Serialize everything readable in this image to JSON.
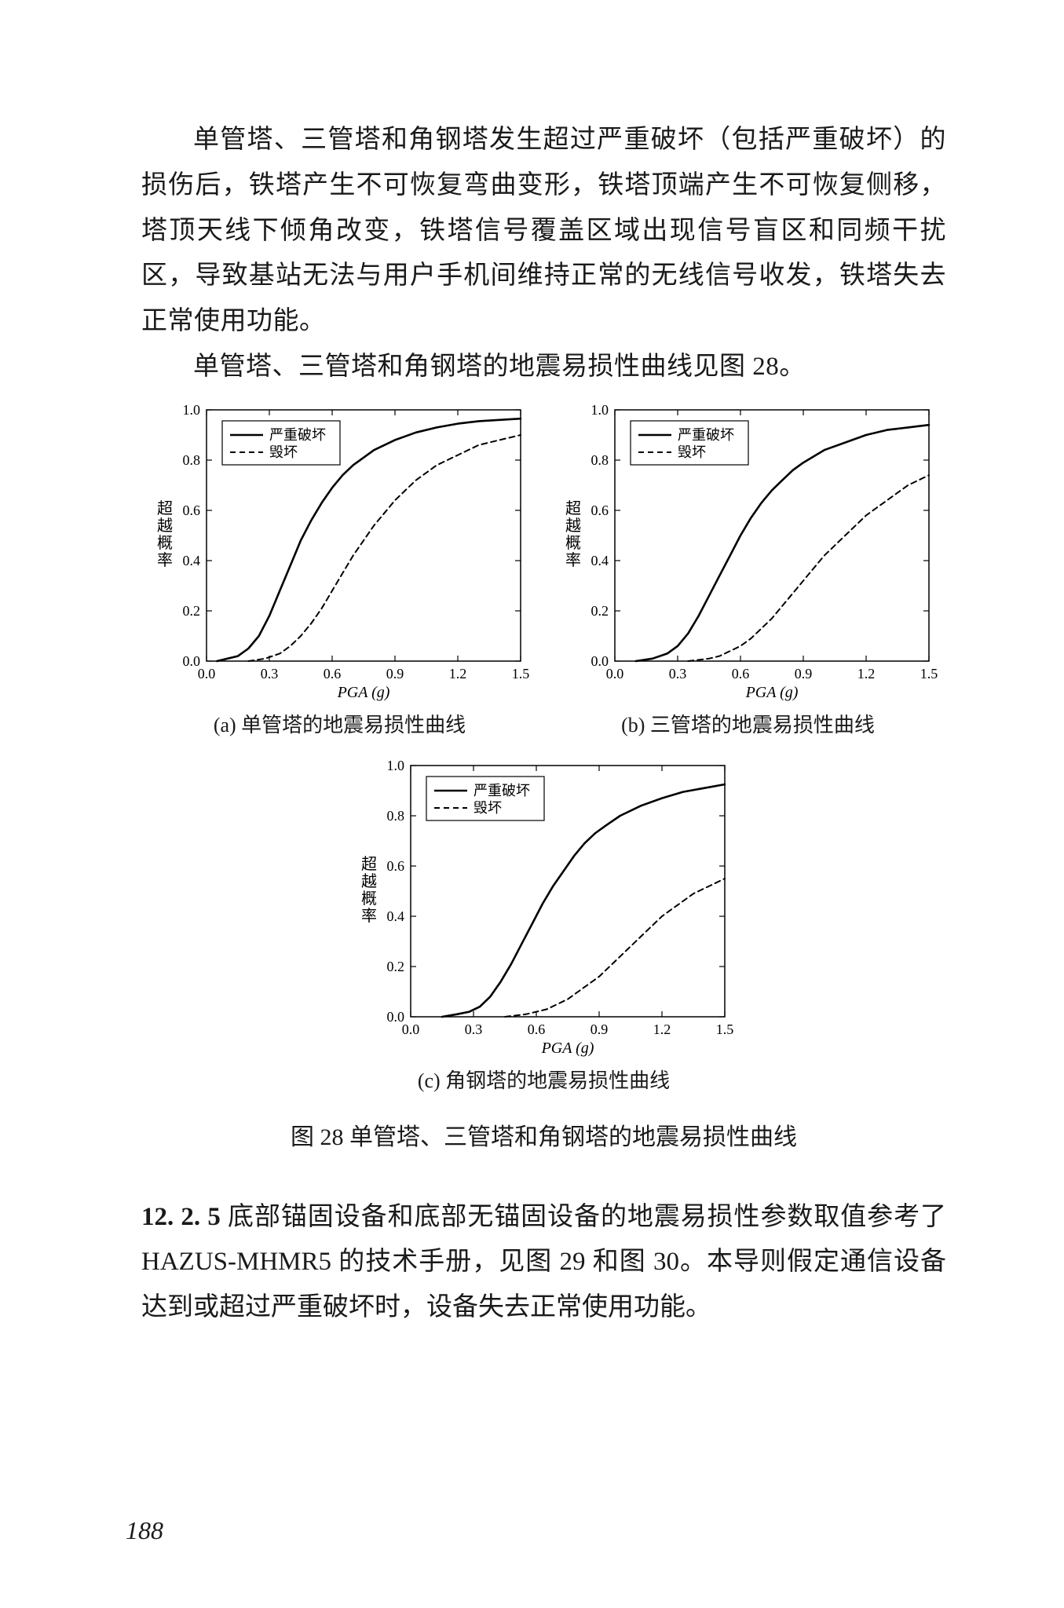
{
  "paragraph1": {
    "line1": "单管塔、三管塔和角钢塔发生超过严重破坏（包括严重破",
    "line2_5": "坏）的损伤后，铁塔产生不可恢复弯曲变形，铁塔顶端产生不可恢复侧移，塔顶天线下倾角改变，铁塔信号覆盖区域出现信号盲区和同频干扰区，导致基站无法与用户手机间维持正常的无线信号收发，铁塔失去正常使用功能。"
  },
  "paragraph2": "单管塔、三管塔和角钢塔的地震易损性曲线见图 28。",
  "figure": {
    "caption": "图 28  单管塔、三管塔和角钢塔的地震易损性曲线",
    "legend": {
      "severe": "严重破坏",
      "destroy": "毁坏"
    },
    "xlabel": "PGA (g)",
    "ylabel": "超越概率",
    "xlim": [
      0.0,
      1.5
    ],
    "ylim": [
      0.0,
      1.0
    ],
    "xticks": [
      "0.0",
      "0.3",
      "0.6",
      "0.9",
      "1.2",
      "1.5"
    ],
    "yticks": [
      "0.0",
      "0.2",
      "0.4",
      "0.6",
      "0.8",
      "1.0"
    ],
    "line_color": "#000000",
    "solid_width": 2.6,
    "dash_width": 2.0,
    "dash_pattern": "7 5",
    "subplots": {
      "a": {
        "subtitle": "(a) 单管塔的地震易损性曲线",
        "severe_xy": [
          [
            0.05,
            0.0
          ],
          [
            0.1,
            0.01
          ],
          [
            0.15,
            0.02
          ],
          [
            0.2,
            0.05
          ],
          [
            0.25,
            0.1
          ],
          [
            0.3,
            0.18
          ],
          [
            0.35,
            0.28
          ],
          [
            0.4,
            0.38
          ],
          [
            0.45,
            0.48
          ],
          [
            0.5,
            0.56
          ],
          [
            0.55,
            0.63
          ],
          [
            0.6,
            0.69
          ],
          [
            0.65,
            0.74
          ],
          [
            0.7,
            0.78
          ],
          [
            0.8,
            0.84
          ],
          [
            0.9,
            0.88
          ],
          [
            1.0,
            0.91
          ],
          [
            1.1,
            0.93
          ],
          [
            1.2,
            0.945
          ],
          [
            1.3,
            0.955
          ],
          [
            1.4,
            0.96
          ],
          [
            1.5,
            0.965
          ]
        ],
        "destroy_xy": [
          [
            0.2,
            0.0
          ],
          [
            0.28,
            0.01
          ],
          [
            0.35,
            0.03
          ],
          [
            0.4,
            0.06
          ],
          [
            0.45,
            0.1
          ],
          [
            0.5,
            0.15
          ],
          [
            0.55,
            0.21
          ],
          [
            0.6,
            0.28
          ],
          [
            0.65,
            0.35
          ],
          [
            0.7,
            0.42
          ],
          [
            0.75,
            0.48
          ],
          [
            0.8,
            0.54
          ],
          [
            0.85,
            0.59
          ],
          [
            0.9,
            0.64
          ],
          [
            0.95,
            0.68
          ],
          [
            1.0,
            0.72
          ],
          [
            1.1,
            0.78
          ],
          [
            1.2,
            0.82
          ],
          [
            1.3,
            0.86
          ],
          [
            1.4,
            0.88
          ],
          [
            1.5,
            0.9
          ]
        ]
      },
      "b": {
        "subtitle": "(b) 三管塔的地震易损性曲线",
        "severe_xy": [
          [
            0.1,
            0.0
          ],
          [
            0.18,
            0.01
          ],
          [
            0.25,
            0.03
          ],
          [
            0.3,
            0.06
          ],
          [
            0.35,
            0.11
          ],
          [
            0.4,
            0.18
          ],
          [
            0.45,
            0.26
          ],
          [
            0.5,
            0.34
          ],
          [
            0.55,
            0.42
          ],
          [
            0.6,
            0.5
          ],
          [
            0.65,
            0.57
          ],
          [
            0.7,
            0.63
          ],
          [
            0.75,
            0.68
          ],
          [
            0.8,
            0.72
          ],
          [
            0.85,
            0.76
          ],
          [
            0.9,
            0.79
          ],
          [
            1.0,
            0.84
          ],
          [
            1.1,
            0.87
          ],
          [
            1.2,
            0.9
          ],
          [
            1.3,
            0.92
          ],
          [
            1.4,
            0.93
          ],
          [
            1.5,
            0.94
          ]
        ],
        "destroy_xy": [
          [
            0.35,
            0.0
          ],
          [
            0.45,
            0.01
          ],
          [
            0.5,
            0.02
          ],
          [
            0.55,
            0.04
          ],
          [
            0.6,
            0.06
          ],
          [
            0.65,
            0.09
          ],
          [
            0.7,
            0.13
          ],
          [
            0.75,
            0.17
          ],
          [
            0.8,
            0.22
          ],
          [
            0.85,
            0.27
          ],
          [
            0.9,
            0.32
          ],
          [
            0.95,
            0.37
          ],
          [
            1.0,
            0.42
          ],
          [
            1.05,
            0.46
          ],
          [
            1.1,
            0.5
          ],
          [
            1.15,
            0.54
          ],
          [
            1.2,
            0.58
          ],
          [
            1.25,
            0.61
          ],
          [
            1.3,
            0.64
          ],
          [
            1.35,
            0.67
          ],
          [
            1.4,
            0.7
          ],
          [
            1.45,
            0.72
          ],
          [
            1.5,
            0.74
          ]
        ]
      },
      "c": {
        "subtitle": "(c) 角钢塔的地震易损性曲线",
        "severe_xy": [
          [
            0.15,
            0.0
          ],
          [
            0.22,
            0.01
          ],
          [
            0.28,
            0.02
          ],
          [
            0.33,
            0.04
          ],
          [
            0.38,
            0.08
          ],
          [
            0.43,
            0.14
          ],
          [
            0.48,
            0.21
          ],
          [
            0.53,
            0.29
          ],
          [
            0.58,
            0.37
          ],
          [
            0.63,
            0.45
          ],
          [
            0.68,
            0.52
          ],
          [
            0.73,
            0.58
          ],
          [
            0.78,
            0.64
          ],
          [
            0.83,
            0.69
          ],
          [
            0.88,
            0.73
          ],
          [
            0.93,
            0.76
          ],
          [
            1.0,
            0.8
          ],
          [
            1.1,
            0.84
          ],
          [
            1.2,
            0.87
          ],
          [
            1.3,
            0.895
          ],
          [
            1.4,
            0.91
          ],
          [
            1.5,
            0.925
          ]
        ],
        "destroy_xy": [
          [
            0.45,
            0.0
          ],
          [
            0.55,
            0.01
          ],
          [
            0.6,
            0.02
          ],
          [
            0.65,
            0.03
          ],
          [
            0.7,
            0.05
          ],
          [
            0.75,
            0.07
          ],
          [
            0.8,
            0.1
          ],
          [
            0.85,
            0.13
          ],
          [
            0.9,
            0.16
          ],
          [
            0.95,
            0.2
          ],
          [
            1.0,
            0.24
          ],
          [
            1.05,
            0.28
          ],
          [
            1.1,
            0.32
          ],
          [
            1.15,
            0.36
          ],
          [
            1.2,
            0.4
          ],
          [
            1.25,
            0.43
          ],
          [
            1.3,
            0.46
          ],
          [
            1.35,
            0.49
          ],
          [
            1.4,
            0.51
          ],
          [
            1.45,
            0.53
          ],
          [
            1.5,
            0.55
          ]
        ]
      }
    }
  },
  "section": {
    "num": "12. 2. 5",
    "text": "  底部锚固设备和底部无锚固设备的地震易损性参数取值参考了 HAZUS-MHMR5 的技术手册，见图 29 和图 30。本导则假定通信设备达到或超过严重破坏时，设备失去正常使用功能。"
  },
  "page_number": "188"
}
